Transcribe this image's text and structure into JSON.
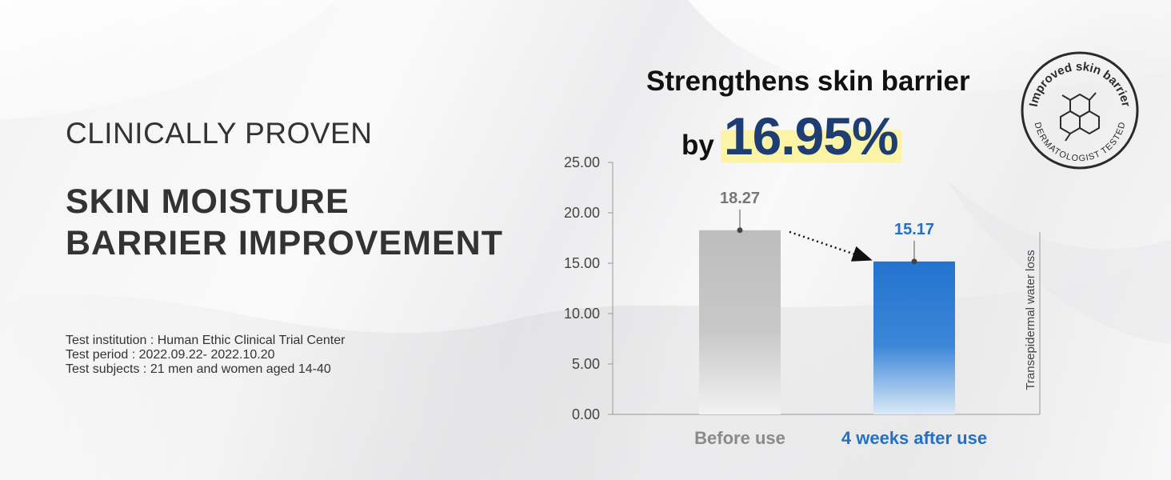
{
  "subtitle": "CLINICALLY PROVEN",
  "title_line1": "SKIN MOISTURE",
  "title_line2": "BARRIER IMPROVEMENT",
  "info": {
    "institution": "Test institution : Human Ethic Clinical Trial Center",
    "period": "Test period : 2022.09.22- 2022.10.20",
    "subjects": "Test subjects : 21 men and women aged 14-40"
  },
  "headline": "Strengthens skin barrier",
  "by_word": "by",
  "percent": "16.95%",
  "seal": {
    "top_text": "Improved skin barrier",
    "bottom_text": "DERMATOLOGIST TESTED"
  },
  "colors": {
    "before_bar": "#c3c3c3",
    "after_bar": "#2374cf",
    "after_label": "#2470c9",
    "before_label": "#777777",
    "percent": "#1e3d72",
    "highlight": "#fbf3a6"
  },
  "chart_data": {
    "type": "bar",
    "categories": [
      "Before use",
      "4 weeks after use"
    ],
    "values": [
      18.27,
      15.17
    ],
    "value_labels": [
      "18.27",
      "15.17"
    ],
    "ylabel": "Transepidermal water loss",
    "ylim": [
      0,
      25
    ],
    "yticks": [
      "0.00",
      "5.00",
      "10.00",
      "15.00",
      "20.00",
      "25.00"
    ],
    "ytick_values": [
      0,
      5,
      10,
      15,
      20,
      25
    ],
    "grid": false
  }
}
